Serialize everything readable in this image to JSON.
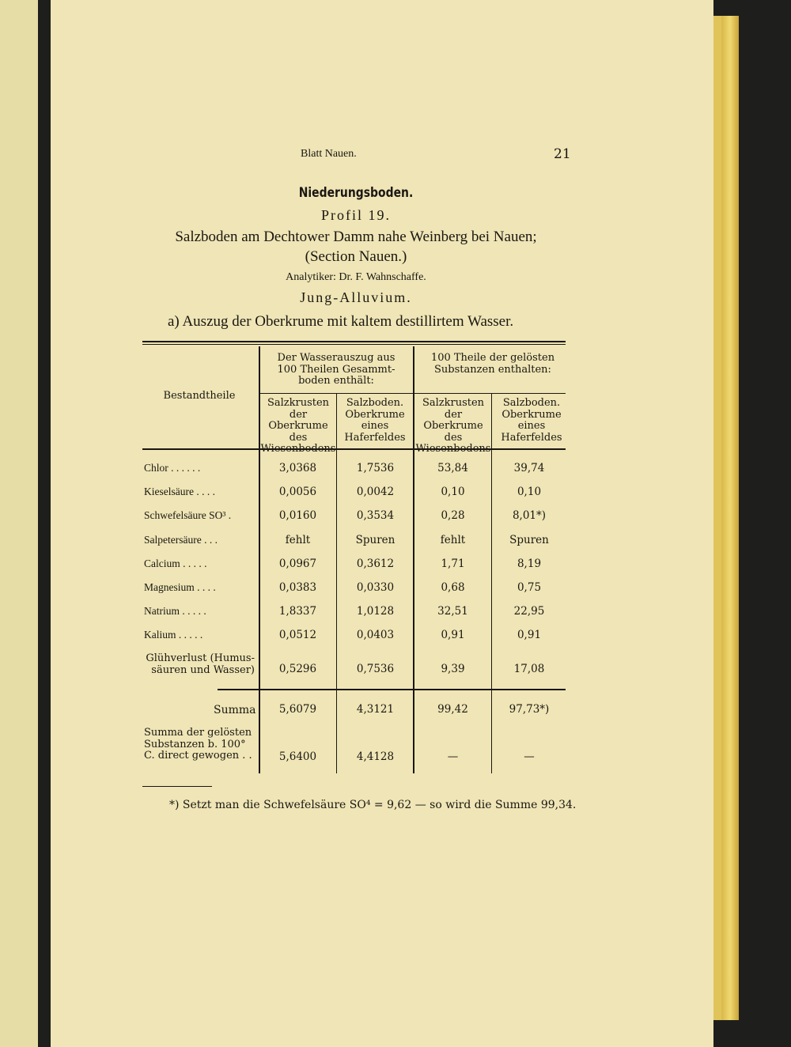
{
  "running_head": "Blatt Nauen.",
  "page_number": "21",
  "section_title": "Niederungsboden.",
  "profile": "Profil 19.",
  "location_line1": "Salzboden am Dechtower Damm nahe Weinberg bei Nauen;",
  "location_line2": "(Section Nauen.)",
  "analyst": "Analytiker: Dr. F. Wahnschaffe.",
  "formation": "Jung-Alluvium.",
  "subtitle": "a) Auszug der Oberkrume mit kaltem destillirtem Wasser.",
  "table": {
    "row_header": "Bestandtheile",
    "group1": "Der Wasserauszug aus 100 Theilen Gesammt-boden enthält:",
    "group2": "100 Theile der gelösten Substanzen enthalten:",
    "col1": "Salzkrusten der Oberkrume des Wiesenbodens",
    "col2": "Salzboden. Oberkrume eines Haferfeldes",
    "col3": "Salzkrusten der Oberkrume des Wiesenbodens",
    "col4": "Salzboden. Oberkrume eines Haferfeldes",
    "rows": [
      {
        "label": "Chlor . . . . . .",
        "v": [
          "3,0368",
          "1,7536",
          "53,84",
          "39,74"
        ]
      },
      {
        "label": "Kieselsäure . . . .",
        "v": [
          "0,0056",
          "0,0042",
          "0,10",
          "0,10"
        ]
      },
      {
        "label": "Schwefelsäure SO³ .",
        "v": [
          "0,0160",
          "0,3534",
          "0,28",
          "8,01*)"
        ]
      },
      {
        "label": "Salpetersäure . . .",
        "v": [
          "fehlt",
          "Spuren",
          "fehlt",
          "Spuren"
        ]
      },
      {
        "label": "Calcium . . . . .",
        "v": [
          "0,0967",
          "0,3612",
          "1,71",
          "8,19"
        ]
      },
      {
        "label": "Magnesium . . . .",
        "v": [
          "0,0383",
          "0,0330",
          "0,68",
          "0,75"
        ]
      },
      {
        "label": "Natrium . . . . .",
        "v": [
          "1,8337",
          "1,0128",
          "32,51",
          "22,95"
        ]
      },
      {
        "label": "Kalium . . . . .",
        "v": [
          "0,0512",
          "0,0403",
          "0,91",
          "0,91"
        ]
      },
      {
        "label": "Glühverlust (Humus-säuren und Wasser)",
        "v": [
          "0,5296",
          "0,7536",
          "9,39",
          "17,08"
        ]
      }
    ],
    "summa": {
      "label": "Summa",
      "v": [
        "5,6079",
        "4,3121",
        "99,42",
        "97,73*)"
      ]
    },
    "summa2": {
      "label": "Summa der gelösten Substanzen b. 100° C. direct gewogen . .",
      "v": [
        "5,6400",
        "4,4128",
        "—",
        "—"
      ]
    }
  },
  "footnote": "*) Setzt man die Schwefelsäure SO⁴ = 9,62 — so wird die Summe 99,34."
}
